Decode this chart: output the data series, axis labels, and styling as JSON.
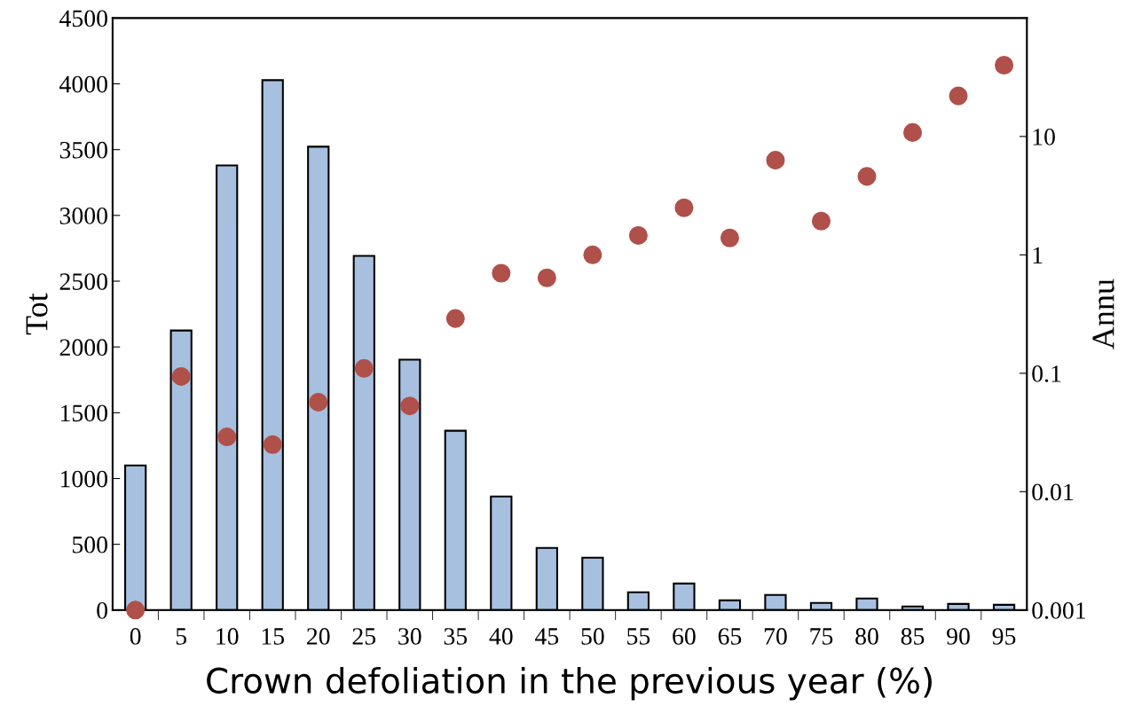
{
  "chart_data": {
    "type": "bar",
    "xlabel": "Crown defoliation in the previous year (%)",
    "ylabel": "Tot",
    "y2label": "Annu",
    "categories": [
      "0",
      "5",
      "10",
      "15",
      "20",
      "25",
      "30",
      "35",
      "40",
      "45",
      "50",
      "55",
      "60",
      "65",
      "70",
      "75",
      "80",
      "85",
      "90",
      "95"
    ],
    "series": [
      {
        "color": "#a7c0e0",
        "values": [
          1100,
          2125,
          3380,
          4028,
          3522,
          2692,
          1903,
          1363,
          864,
          472,
          398,
          135,
          202,
          74,
          115,
          54,
          88,
          27,
          47,
          40
        ]
      },
      {
        "type": "scatter",
        "axis": "y2",
        "color": "#b0504a",
        "marker": "circle",
        "values": [
          0.001,
          0.094,
          0.029,
          0.025,
          0.057,
          0.11,
          0.053,
          0.29,
          0.7,
          0.64,
          1.0,
          1.46,
          2.5,
          1.39,
          6.3,
          1.93,
          4.6,
          10.8,
          22,
          40
        ]
      }
    ],
    "ylim": [
      0,
      4500
    ],
    "yticks": [
      0,
      500,
      1000,
      1500,
      2000,
      2500,
      3000,
      3500,
      4000,
      4500
    ],
    "log": "y2",
    "y2lim": [
      0.001,
      100
    ],
    "y2ticks": [
      0.001,
      0.01,
      0.1,
      1,
      10,
      {
        "value": 100,
        "label": null
      }
    ],
    "grid": false
  }
}
